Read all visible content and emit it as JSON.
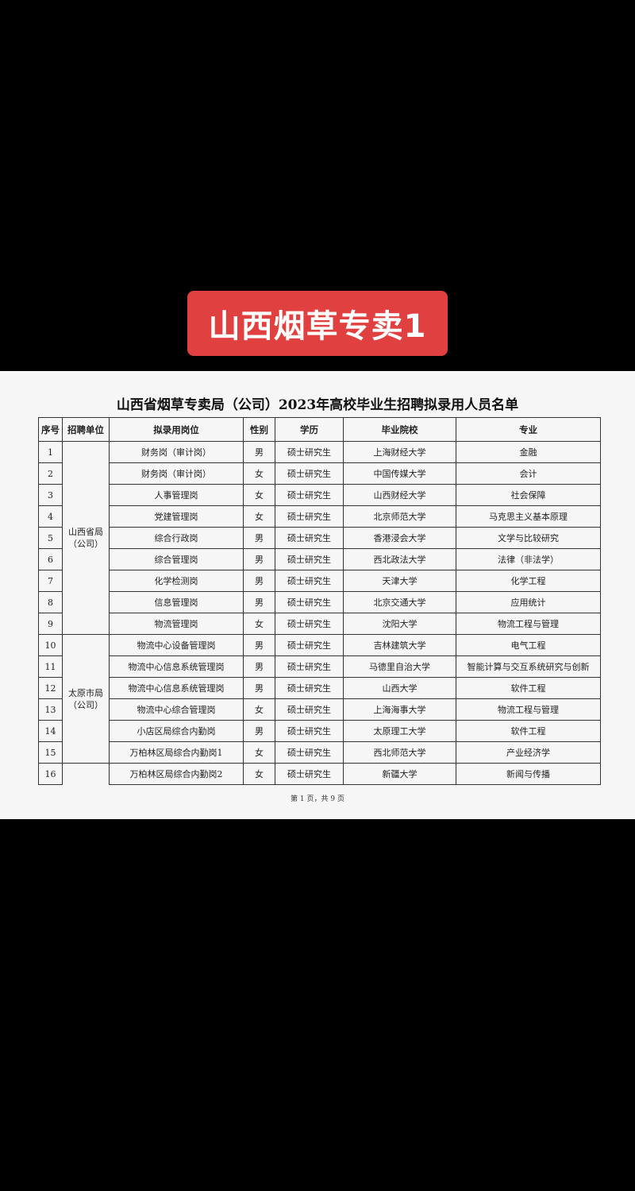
{
  "banner": {
    "title": "山西烟草专卖1",
    "color": "#e0403f"
  },
  "document": {
    "title": "山西省烟草专卖局（公司）2023年高校毕业生招聘拟录用人员名单",
    "columns": [
      "序号",
      "招聘单位",
      "拟录用岗位",
      "性别",
      "学历",
      "毕业院校",
      "专业"
    ],
    "units": [
      "山西省局（公司）",
      "太原市局（公司）"
    ],
    "rows": [
      {
        "no": "1",
        "post": "财务岗（审计岗）",
        "gender": "男",
        "edu": "硕士研究生",
        "school": "上海财经大学",
        "major": "金融"
      },
      {
        "no": "2",
        "post": "财务岗（审计岗）",
        "gender": "女",
        "edu": "硕士研究生",
        "school": "中国传媒大学",
        "major": "会计"
      },
      {
        "no": "3",
        "post": "人事管理岗",
        "gender": "女",
        "edu": "硕士研究生",
        "school": "山西财经大学",
        "major": "社会保障"
      },
      {
        "no": "4",
        "post": "党建管理岗",
        "gender": "女",
        "edu": "硕士研究生",
        "school": "北京师范大学",
        "major": "马克思主义基本原理"
      },
      {
        "no": "5",
        "post": "综合行政岗",
        "gender": "男",
        "edu": "硕士研究生",
        "school": "香港浸会大学",
        "major": "文学与比较研究"
      },
      {
        "no": "6",
        "post": "综合管理岗",
        "gender": "男",
        "edu": "硕士研究生",
        "school": "西北政法大学",
        "major": "法律（非法学）"
      },
      {
        "no": "7",
        "post": "化学检测岗",
        "gender": "男",
        "edu": "硕士研究生",
        "school": "天津大学",
        "major": "化学工程"
      },
      {
        "no": "8",
        "post": "信息管理岗",
        "gender": "男",
        "edu": "硕士研究生",
        "school": "北京交通大学",
        "major": "应用统计"
      },
      {
        "no": "9",
        "post": "物流管理岗",
        "gender": "女",
        "edu": "硕士研究生",
        "school": "沈阳大学",
        "major": "物流工程与管理"
      },
      {
        "no": "10",
        "post": "物流中心设备管理岗",
        "gender": "男",
        "edu": "硕士研究生",
        "school": "吉林建筑大学",
        "major": "电气工程"
      },
      {
        "no": "11",
        "post": "物流中心信息系统管理岗",
        "gender": "男",
        "edu": "硕士研究生",
        "school": "马德里自治大学",
        "major": "智能计算与交互系统研究与创新"
      },
      {
        "no": "12",
        "post": "物流中心信息系统管理岗",
        "gender": "男",
        "edu": "硕士研究生",
        "school": "山西大学",
        "major": "软件工程"
      },
      {
        "no": "13",
        "post": "物流中心综合管理岗",
        "gender": "女",
        "edu": "硕士研究生",
        "school": "上海海事大学",
        "major": "物流工程与管理"
      },
      {
        "no": "14",
        "post": "小店区局综合内勤岗",
        "gender": "男",
        "edu": "硕士研究生",
        "school": "太原理工大学",
        "major": "软件工程"
      },
      {
        "no": "15",
        "post": "万柏林区局综合内勤岗1",
        "gender": "女",
        "edu": "硕士研究生",
        "school": "西北师范大学",
        "major": "产业经济学"
      },
      {
        "no": "16",
        "post": "万柏林区局综合内勤岗2",
        "gender": "女",
        "edu": "硕士研究生",
        "school": "新疆大学",
        "major": "新闻与传播"
      }
    ],
    "footer": "第 1 页，共 9 页"
  }
}
